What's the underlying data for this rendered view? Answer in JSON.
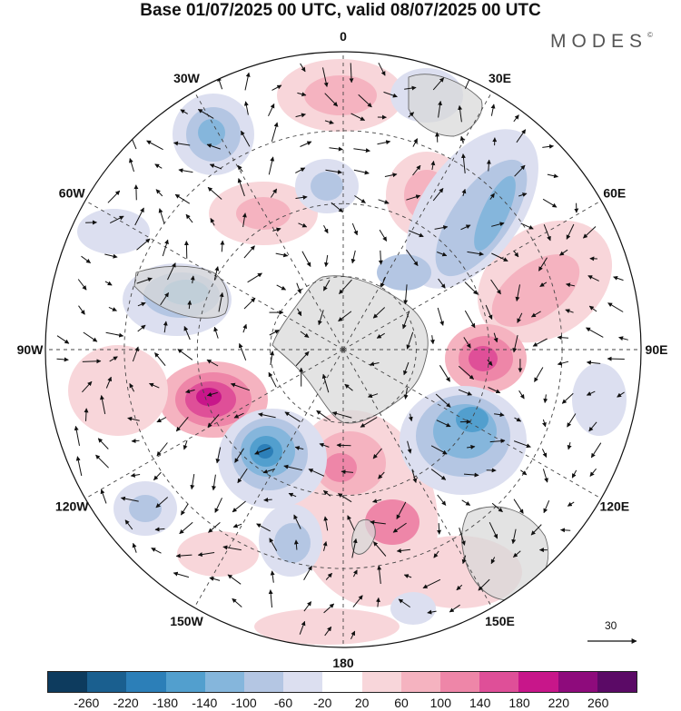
{
  "title": "Base 01/07/2025 00 UTC, valid 08/07/2025 00 UTC",
  "brand": "MODES",
  "brand_mark": "©",
  "map": {
    "projection": "south-polar-stereographic",
    "longitude_labels": [
      "0",
      "30E",
      "60E",
      "90E",
      "120E",
      "150E",
      "180",
      "150W",
      "120W",
      "90W",
      "60W",
      "30W"
    ],
    "reference_vector": "30",
    "colors": {
      "land": "#d8d8d8",
      "coast": "#666666",
      "grid": "#444444",
      "arrow": "#111111"
    }
  },
  "colorbar": {
    "colors": [
      "#0d3b5e",
      "#1a5f8f",
      "#2c7fb8",
      "#529fce",
      "#85b6dc",
      "#b4c6e3",
      "#dcdff0",
      "#ffffff",
      "#f8d6da",
      "#f5b3c0",
      "#ee86a8",
      "#df4f98",
      "#c8168a",
      "#8e0b7c",
      "#5b0a66"
    ],
    "ticks": [
      "-260",
      "-220",
      "-180",
      "-140",
      "-100",
      "-60",
      "-20",
      "20",
      "60",
      "100",
      "140",
      "180",
      "220",
      "260"
    ]
  }
}
